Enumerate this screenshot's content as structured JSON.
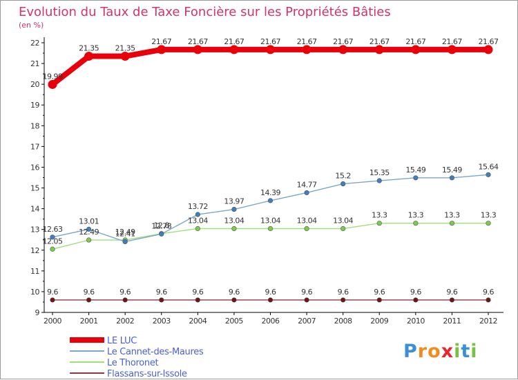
{
  "chart_data": {
    "type": "line",
    "title": "Evolution du Taux de Taxe Foncière sur les Propriétés Bâties",
    "subtitle": "(en %)",
    "x": [
      "2000",
      "2001",
      "2002",
      "2003",
      "2004",
      "2005",
      "2006",
      "2007",
      "2008",
      "2009",
      "2010",
      "2011",
      "2012"
    ],
    "ylim": [
      9,
      22
    ],
    "yticks": [
      9,
      10,
      11,
      12,
      13,
      14,
      15,
      16,
      17,
      18,
      19,
      20,
      21,
      22
    ],
    "grid": false,
    "legend_position": "bottom-left",
    "series": [
      {
        "name": "LE LUC",
        "color": "#e8000b",
        "width": "thick",
        "values": [
          19.99,
          21.35,
          21.35,
          21.67,
          21.67,
          21.67,
          21.67,
          21.67,
          21.67,
          21.67,
          21.67,
          21.67,
          21.67
        ],
        "labels": [
          "19.99",
          "21.35",
          "21.35",
          "21.67",
          "21.67",
          "21.67",
          "21.67",
          "21.67",
          "21.67",
          "21.67",
          "21.67",
          "21.67",
          "21.67"
        ]
      },
      {
        "name": "Le Cannet-des-Maures",
        "color": "#7aa6cd",
        "marker_color": "#3d7fbf",
        "width": "thin",
        "values": [
          12.63,
          13.01,
          12.41,
          12.78,
          13.72,
          13.97,
          14.39,
          14.77,
          15.2,
          15.35,
          15.49,
          15.49,
          15.64
        ],
        "labels": [
          "12.63",
          "13.01",
          "12.41",
          "12.78",
          "13.72",
          "13.97",
          "14.39",
          "14.77",
          "15.2",
          "15.35",
          "15.49",
          "15.49",
          "15.64"
        ]
      },
      {
        "name": "Le Thoronet",
        "color": "#9ee07a",
        "marker_color": "#7ecb4c",
        "width": "thin",
        "values": [
          12.05,
          12.49,
          12.49,
          12.8,
          13.04,
          13.04,
          13.04,
          13.04,
          13.04,
          13.3,
          13.3,
          13.3,
          13.3
        ],
        "labels": [
          "12.05",
          "12.49",
          "12.49",
          "12.8",
          "13.04",
          "13.04",
          "13.04",
          "13.04",
          "13.04",
          "13.3",
          "13.3",
          "13.3",
          "13.3"
        ]
      },
      {
        "name": "Flassans-sur-Issole",
        "color": "#8a3a3a",
        "marker_color": "#6e1414",
        "width": "thin",
        "values": [
          9.6,
          9.6,
          9.6,
          9.6,
          9.6,
          9.6,
          9.6,
          9.6,
          9.6,
          9.6,
          9.6,
          9.6,
          9.6
        ],
        "labels": [
          "9.6",
          "9.6",
          "9.6",
          "9.6",
          "9.6",
          "9.6",
          "9.6",
          "9.6",
          "9.6",
          "9.6",
          "9.6",
          "9.6",
          "9.6"
        ]
      }
    ]
  },
  "brand": {
    "letters": [
      "P",
      "r",
      "o",
      "x",
      "i",
      "t",
      "i"
    ],
    "colors": [
      "#3b8fd9",
      "#f28c1e",
      "#f28c1e",
      "#e8262d",
      "#79c143",
      "#3b8fd9",
      "#79c143"
    ]
  }
}
